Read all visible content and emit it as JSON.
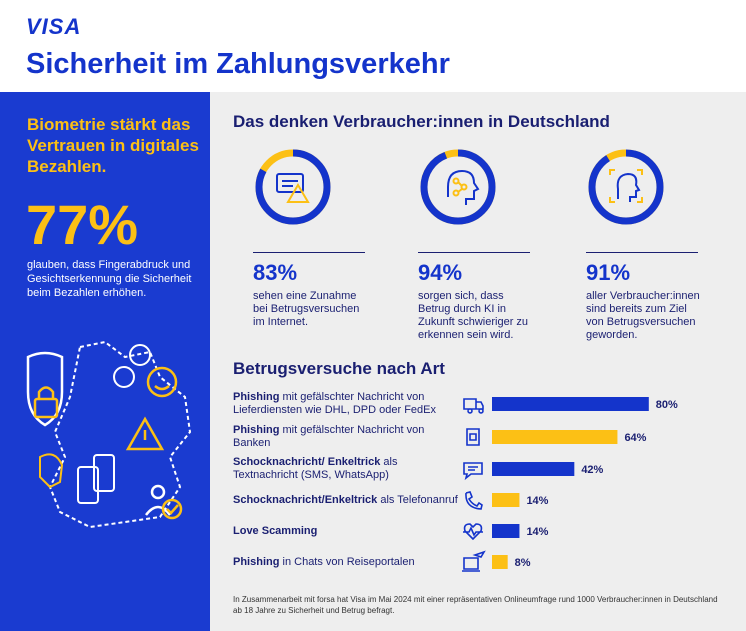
{
  "header": {
    "logo": "VISA",
    "title": "Sicherheit im Zahlungsverkehr"
  },
  "left_panel": {
    "headline": "Biometrie stärkt das Vertrauen in digitales Bezahlen.",
    "big_number": "77%",
    "description": "glauben, dass Fingerabdruck und Gesichtserkennung die Sicherheit beim Bezahlen erhöhen."
  },
  "survey": {
    "title": "Das denken Verbraucher:innen in Deutschland",
    "stats": [
      {
        "value": 83,
        "label": "83%",
        "text": "sehen eine Zunahme bei Betrugsversuchen im Internet.",
        "icon": "screen-warning-icon"
      },
      {
        "value": 94,
        "label": "94%",
        "text": "sorgen sich, dass Betrug durch KI in Zukunft schwieriger zu erkennen sein wird.",
        "icon": "ai-head-icon"
      },
      {
        "value": 91,
        "label": "91%",
        "text": "aller Verbraucher:innen sind bereits zum Ziel von Betrugsversuchen geworden.",
        "icon": "face-scan-icon"
      }
    ]
  },
  "chart_data": {
    "type": "bar",
    "orientation": "horizontal",
    "title": "Betrugsversuche nach Art",
    "categories": [
      "Phishing mit gefälschter Nachricht von Lieferdiensten wie DHL, DPD oder FedEx",
      "Phishing mit gefälschter Nachricht von Banken",
      "Schocknachricht/ Enkeltrick als Textnachricht (SMS, WhatsApp)",
      "Schocknachricht/Enkeltrick als Telefonanruf",
      "Love Scamming",
      "Phishing in Chats von Reiseportalen"
    ],
    "rows": [
      {
        "bold": "Phishing",
        "rest": " mit gefälschter Nachricht von Lieferdiensten wie DHL, DPD oder FedEx",
        "value": 80,
        "label": "80%",
        "color": "#1434cb",
        "icon": "delivery-truck-icon"
      },
      {
        "bold": "Phishing",
        "rest": " mit gefälschter Nachricht von Banken",
        "value": 64,
        "label": "64%",
        "color": "#fcc015",
        "icon": "bank-card-icon"
      },
      {
        "bold": "Schocknachricht/ Enkeltrick",
        "rest": " als Textnachricht (SMS, WhatsApp)",
        "value": 42,
        "label": "42%",
        "color": "#1434cb",
        "icon": "chat-bubble-icon"
      },
      {
        "bold": "Schocknachricht/Enkeltrick",
        "rest": " als Telefonanruf",
        "value": 14,
        "label": "14%",
        "color": "#fcc015",
        "icon": "phone-call-icon"
      },
      {
        "bold": "Love Scamming",
        "rest": "",
        "value": 14,
        "label": "14%",
        "color": "#1434cb",
        "icon": "heart-pulse-icon"
      },
      {
        "bold": "Phishing",
        "rest": " in Chats von Reiseportalen",
        "value": 8,
        "label": "8%",
        "color": "#fcc015",
        "icon": "plane-laptop-icon"
      }
    ],
    "xlim": [
      0,
      100
    ]
  },
  "footnote": "In Zusammenarbeit mit forsa hat Visa im Mai 2024 mit einer repräsentativen Onlineumfrage rund 1000 Verbraucher:innen in Deutschland ab 18 Jahre zu Sicherheit und Betrug befragt.",
  "colors": {
    "blue": "#1434cb",
    "yellow": "#fcc015",
    "navy": "#1a1f71"
  }
}
